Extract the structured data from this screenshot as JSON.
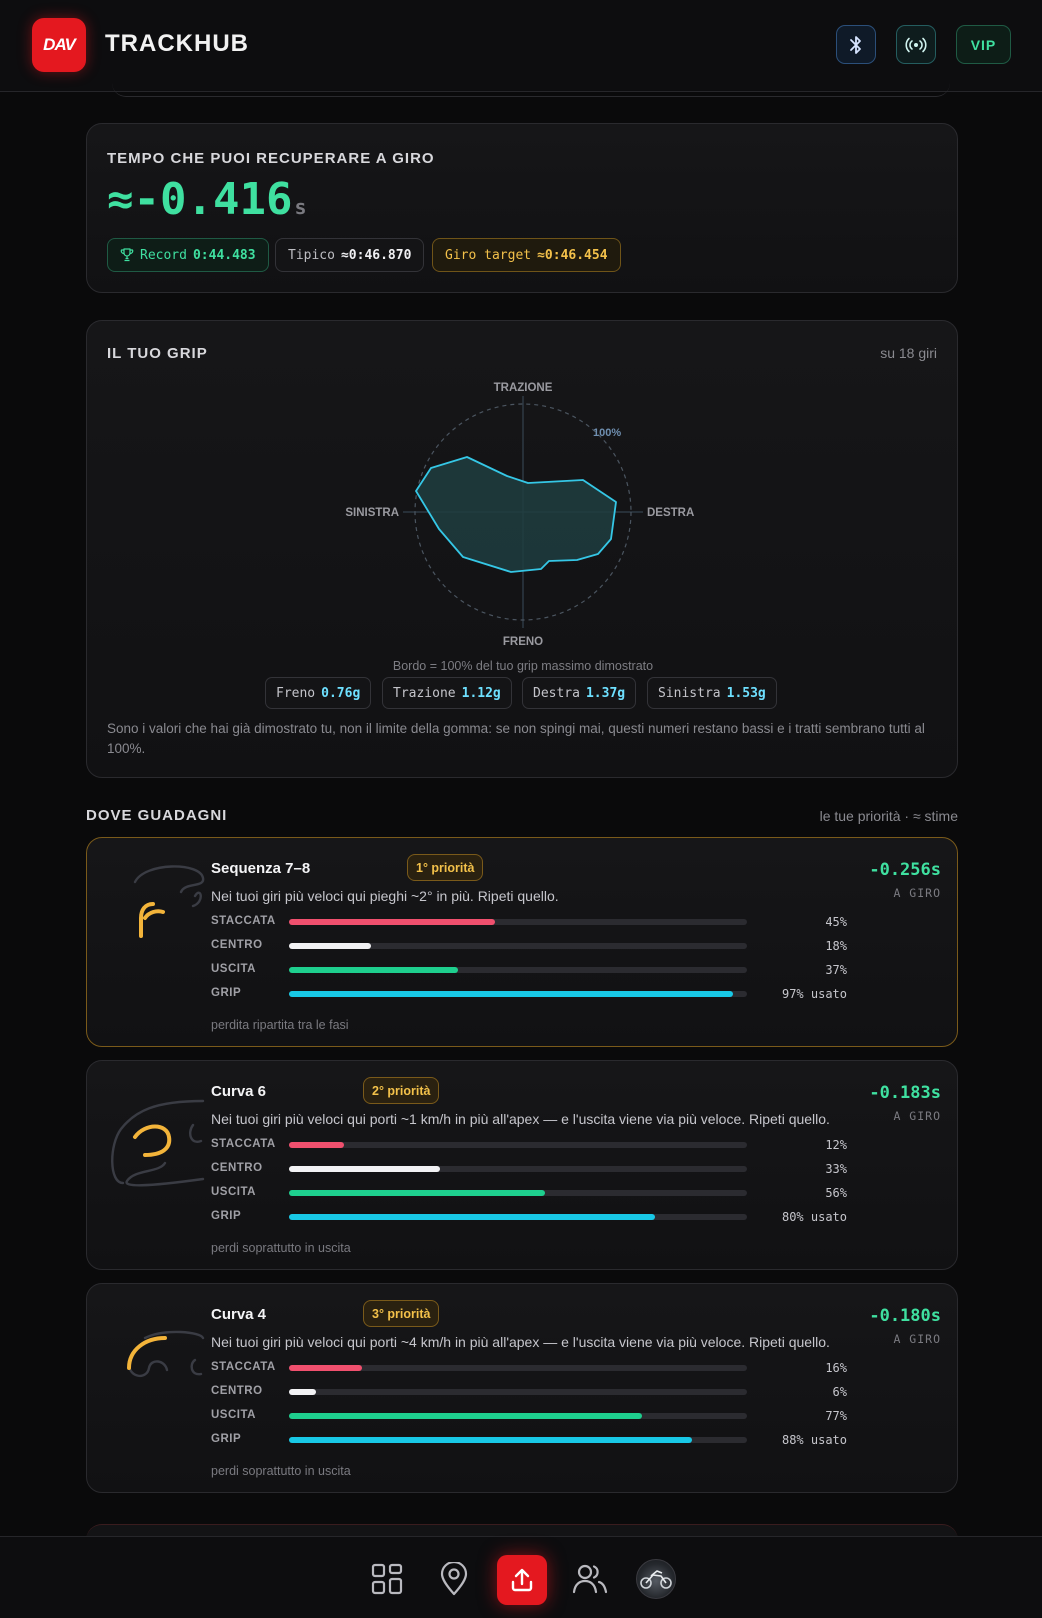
{
  "header": {
    "logo_text": "DAV",
    "title": "TRACKHUB",
    "vip_label": "VIP",
    "icons": [
      "bluetooth-icon",
      "radio-broadcast-icon"
    ]
  },
  "recover": {
    "title": "TEMPO CHE PUOI RECUPERARE A GIRO",
    "value": "≈-0.416",
    "unit": "s",
    "record_label": "Record",
    "record_value": "0:44.483",
    "typical_label": "Tipico",
    "typical_value": "≈0:46.870",
    "target_label": "Giro target",
    "target_value": "≈0:46.454"
  },
  "grip": {
    "title": "IL TUO GRIP",
    "subtitle": "su 18 giri",
    "axis_top": "TRAZIONE",
    "axis_bottom": "FRENO",
    "axis_left": "SINISTRA",
    "axis_right": "DESTRA",
    "ring_label": "100%",
    "note": "Bordo = 100% del tuo grip massimo dimostrato",
    "chips": [
      {
        "label": "Freno",
        "value": "0.76g"
      },
      {
        "label": "Trazione",
        "value": "1.12g"
      },
      {
        "label": "Destra",
        "value": "1.37g"
      },
      {
        "label": "Sinistra",
        "value": "1.53g"
      }
    ],
    "description": "Sono i valori che hai già dimostrato tu, non il limite della gomma: se non spingi mai, questi numeri restano bassi e i tratti sembrano tutti al 100%.",
    "accent": "#35c7e6"
  },
  "gains": {
    "title": "DOVE GUADAGNI",
    "subtitle": "le tue priorità · ≈ stime",
    "phase_labels": [
      "STACCATA",
      "CENTRO",
      "USCITA",
      "GRIP"
    ],
    "bar_colors": [
      "#f0506e",
      "#f2f2f4",
      "#1ecf8e",
      "#18c8e6"
    ],
    "gain_label": "A GIRO",
    "corners": [
      {
        "name": "Sequenza 7–8",
        "priority": "1° priorità",
        "description": "Nei tuoi giri più veloci qui pieghi ~2° in più. Ripeti quello.",
        "gain": "-0.256s",
        "values": [
          45,
          18,
          37,
          97
        ],
        "pcts": [
          "45%",
          "18%",
          "37%",
          "97% usato"
        ],
        "footer": "perdita ripartita tra le fasi"
      },
      {
        "name": "Curva 6",
        "priority": "2° priorità",
        "description": "Nei tuoi giri più veloci qui porti ~1 km/h in più all'apex — e l'uscita viene via più veloce. Ripeti quello.",
        "gain": "-0.183s",
        "values": [
          12,
          33,
          56,
          80
        ],
        "pcts": [
          "12%",
          "33%",
          "56%",
          "80% usato"
        ],
        "footer": "perdi soprattutto in uscita"
      },
      {
        "name": "Curva 4",
        "priority": "3° priorità",
        "description": "Nei tuoi giri più veloci qui porti ~4 km/h in più all'apex — e l'uscita viene via più veloce. Ripeti quello.",
        "gain": "-0.180s",
        "values": [
          16,
          6,
          77,
          88
        ],
        "pcts": [
          "16%",
          "6%",
          "77%",
          "88% usato"
        ],
        "footer": "perdi soprattutto in uscita"
      }
    ]
  },
  "nav": {
    "items": [
      "dashboard-icon",
      "location-pin-icon",
      "upload-icon",
      "users-icon",
      "motorbike-avatar"
    ],
    "active": "upload-icon"
  }
}
